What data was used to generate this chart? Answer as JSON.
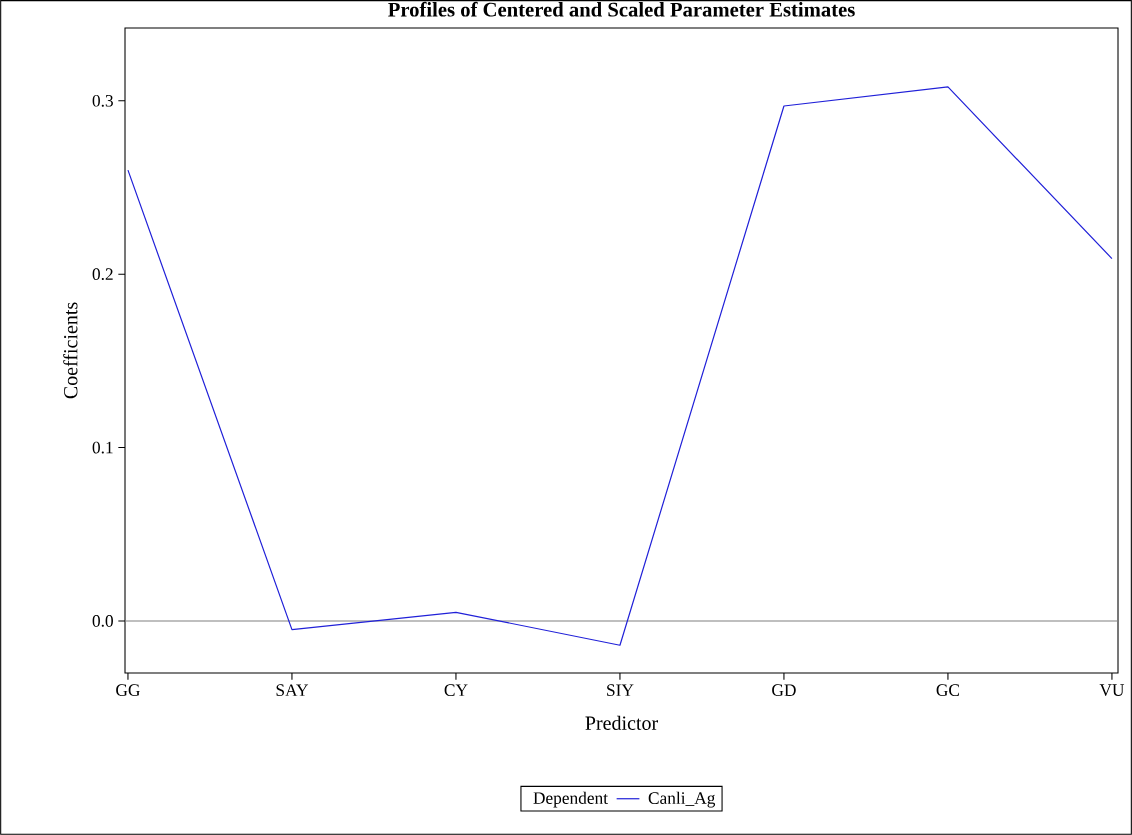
{
  "chart_data": {
    "type": "line",
    "title": "Profiles of Centered and Scaled Parameter Estimates",
    "xlabel": "Predictor",
    "ylabel": "Coefficients",
    "legend_title": "Dependent",
    "categories": [
      "GG",
      "SAY",
      "CY",
      "SIY",
      "GD",
      "GC",
      "VU"
    ],
    "series": [
      {
        "name": "Canli_Ag",
        "color": "#2020d8",
        "values": [
          0.26,
          -0.005,
          0.005,
          -0.014,
          0.297,
          0.308,
          0.209
        ]
      }
    ],
    "ylim": [
      -0.03,
      0.342
    ],
    "yticks": [
      {
        "value": 0,
        "label": "0.0"
      },
      0.1,
      0.2,
      0.3
    ],
    "ref_lines": [
      {
        "axis": "y",
        "value": 0,
        "color": "#808080"
      }
    ],
    "legend": "bottom",
    "marker": "none",
    "line_style": "solid"
  }
}
